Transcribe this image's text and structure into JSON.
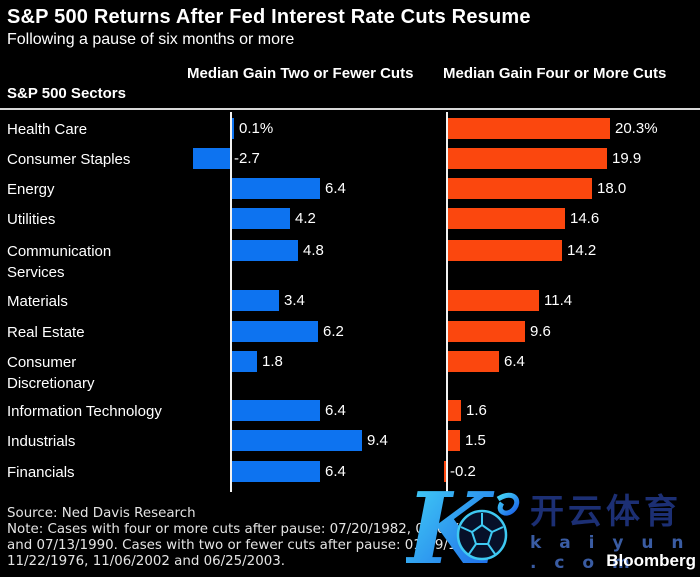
{
  "header": {
    "title": "S&P 500 Returns After Fed Interest Rate Cuts Resume",
    "subtitle": "Following a pause of six months or more"
  },
  "columns": {
    "sectors": "S&P 500 Sectors",
    "two_or_fewer": "Median Gain Two or Fewer Cuts",
    "four_or_more": "Median Gain Four or More Cuts"
  },
  "chart_data": {
    "type": "bar",
    "orientation": "horizontal",
    "grid": false,
    "baseline": 0,
    "value_unit": "percent",
    "categories": [
      "Health Care",
      "Consumer Staples",
      "Energy",
      "Utilities",
      "Communication Services",
      "Materials",
      "Real Estate",
      "Consumer Discretionary",
      "Information Technology",
      "Industrials",
      "Financials"
    ],
    "category_display": [
      "Health Care",
      "Consumer Staples",
      "Energy",
      "Utilities",
      "Communication\nServices",
      "Materials",
      "Real Estate",
      "Consumer\nDiscretionary",
      "Information Technology",
      "Industrials",
      "Financials"
    ],
    "series": [
      {
        "name": "Median Gain Two or Fewer Cuts",
        "color": "#0d73f0",
        "values": [
          0.1,
          -2.7,
          6.4,
          4.2,
          4.8,
          3.4,
          6.2,
          1.8,
          6.4,
          9.4,
          6.4
        ],
        "labels": [
          "0.1%",
          "-2.7",
          "6.4",
          "4.2",
          "4.8",
          "3.4",
          "6.2",
          "1.8",
          "6.4",
          "9.4",
          "6.4"
        ]
      },
      {
        "name": "Median Gain Four or More Cuts",
        "color": "#fb470e",
        "values": [
          20.3,
          19.9,
          18.0,
          14.6,
          14.2,
          11.4,
          9.6,
          6.4,
          1.6,
          1.5,
          -0.2
        ],
        "labels": [
          "20.3%",
          "19.9",
          "18.0",
          "14.6",
          "14.2",
          "11.4",
          "9.6",
          "6.4",
          "1.6",
          "1.5",
          "-0.2"
        ]
      }
    ]
  },
  "footer": {
    "source": "Source: Ned Davis Research",
    "note_lines": [
      "Note: Cases with four or more cuts after pause: 07/20/1982, 03/07/1986",
      "and 07/13/1990. Cases with two or fewer cuts after pause: 01/19/1976,",
      "11/22/1976, 11/06/2002 and 06/25/2003."
    ]
  },
  "watermark": {
    "letter": "K",
    "cjk_text": "开云体育",
    "domain_text": "k a i y u n . c o m"
  },
  "logo": "Bloomberg",
  "colors": {
    "background": "#000000",
    "bar_blue": "#0d73f0",
    "bar_orange": "#fb470e",
    "divider": "#d8d8d8",
    "axis_line": "#f2f2f2",
    "text": "#ffffff",
    "footer_text": "#e4e4e4",
    "watermark_dark_blue": "#1c2f74",
    "watermark_mid_blue": "#3a5ca3",
    "watermark_cyan_top": "#45d9f7",
    "watermark_blue_bottom": "#1a5fe8",
    "logo_text": "#ffffff"
  }
}
